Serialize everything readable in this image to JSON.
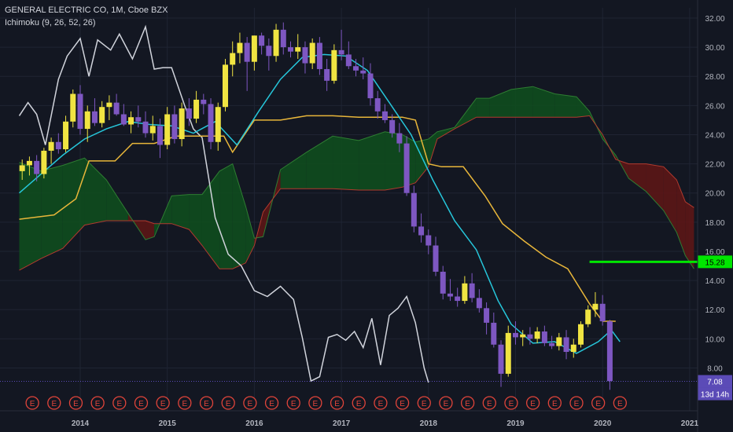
{
  "header": {
    "symbol_line": "GENERAL ELECTRIC CO, 1M, Cboe BZX",
    "indicator_line": "Ichimoku (9, 26, 52, 26)"
  },
  "colors": {
    "background": "#131722",
    "grid": "#1f2433",
    "axis_text": "#b2b5be",
    "candle_up": "#f0e442",
    "candle_down": "#7e57c2",
    "conversion_line": "#26c6da",
    "base_line": "#e8b63a",
    "lagging_span": "#d1d4dc",
    "cloud_bull_fill": "#0f4c1e",
    "cloud_bear_fill": "#5c1616",
    "span_a": "#2e7d32",
    "span_b": "#b23a2e",
    "price_marker": "#00e600",
    "last_price_box": "#5b4bb7"
  },
  "chart_data": {
    "type": "candlestick",
    "title": "GENERAL ELECTRIC CO, 1M, Cboe BZX",
    "indicator": "Ichimoku (9, 26, 52, 26)",
    "x_range": [
      2013.3,
      2021.1
    ],
    "ylim": [
      6.3,
      33.0
    ],
    "x_ticks": [
      {
        "label": "2014",
        "value": 2014
      },
      {
        "label": "2015",
        "value": 2015
      },
      {
        "label": "2016",
        "value": 2016
      },
      {
        "label": "2017",
        "value": 2017
      },
      {
        "label": "2018",
        "value": 2018
      },
      {
        "label": "2019",
        "value": 2019
      },
      {
        "label": "2020",
        "value": 2020
      },
      {
        "label": "2021",
        "value": 2021
      }
    ],
    "y_ticks": [
      "8.00",
      "10.00",
      "12.00",
      "14.00",
      "16.00",
      "18.00",
      "20.00",
      "22.00",
      "24.00",
      "26.00",
      "28.00",
      "30.00",
      "32.00"
    ],
    "y_tick_values": [
      8,
      10,
      12,
      14,
      16,
      18,
      20,
      22,
      24,
      26,
      28,
      30,
      32
    ],
    "candles": {
      "start": 2013.3333,
      "step": 0.08333,
      "ohlc": [
        [
          21.5,
          22.3,
          20.9,
          21.9
        ],
        [
          21.9,
          22.5,
          21.2,
          22.2
        ],
        [
          22.2,
          22.6,
          20.8,
          21.3
        ],
        [
          21.3,
          23.1,
          21.0,
          22.9
        ],
        [
          22.9,
          23.8,
          22.0,
          23.5
        ],
        [
          23.5,
          24.1,
          22.7,
          23.0
        ],
        [
          23.0,
          25.3,
          22.8,
          24.9
        ],
        [
          24.9,
          27.1,
          24.5,
          26.8
        ],
        [
          26.8,
          27.4,
          24.0,
          24.4
        ],
        [
          24.4,
          26.0,
          23.5,
          25.6
        ],
        [
          25.6,
          26.5,
          24.6,
          24.8
        ],
        [
          24.8,
          26.3,
          24.5,
          25.9
        ],
        [
          25.9,
          26.7,
          25.0,
          26.2
        ],
        [
          26.2,
          26.8,
          25.3,
          25.4
        ],
        [
          25.4,
          26.1,
          24.6,
          24.7
        ],
        [
          24.7,
          25.6,
          24.1,
          25.2
        ],
        [
          25.2,
          26.0,
          24.5,
          24.9
        ],
        [
          24.9,
          25.6,
          23.8,
          24.1
        ],
        [
          24.1,
          25.3,
          23.6,
          24.6
        ],
        [
          24.6,
          25.1,
          22.4,
          23.3
        ],
        [
          23.3,
          25.9,
          23.0,
          25.4
        ],
        [
          25.4,
          26.0,
          23.4,
          23.7
        ],
        [
          23.7,
          26.2,
          23.2,
          25.8
        ],
        [
          25.8,
          26.5,
          24.6,
          25.1
        ],
        [
          25.1,
          27.0,
          24.8,
          26.4
        ],
        [
          26.4,
          26.8,
          25.4,
          26.1
        ],
        [
          26.1,
          26.5,
          23.0,
          23.5
        ],
        [
          23.5,
          26.2,
          22.9,
          25.9
        ],
        [
          25.9,
          29.2,
          25.6,
          28.8
        ],
        [
          28.8,
          30.4,
          28.0,
          29.6
        ],
        [
          29.6,
          31.0,
          28.9,
          30.3
        ],
        [
          30.3,
          30.7,
          27.0,
          29.0
        ],
        [
          29.0,
          30.8,
          28.4,
          30.8
        ],
        [
          30.8,
          31.0,
          29.5,
          30.1
        ],
        [
          30.1,
          30.6,
          28.4,
          29.4
        ],
        [
          29.4,
          31.6,
          29.0,
          31.2
        ],
        [
          31.2,
          31.7,
          29.5,
          30.0
        ],
        [
          30.0,
          30.4,
          29.3,
          29.7
        ],
        [
          29.7,
          30.9,
          29.2,
          30.0
        ],
        [
          30.0,
          30.4,
          28.2,
          28.9
        ],
        [
          28.9,
          30.6,
          28.5,
          30.3
        ],
        [
          30.3,
          30.7,
          28.1,
          28.5
        ],
        [
          28.5,
          29.2,
          27.0,
          27.7
        ],
        [
          27.7,
          30.2,
          27.5,
          29.8
        ],
        [
          29.8,
          31.2,
          29.1,
          29.5
        ],
        [
          29.5,
          30.4,
          28.5,
          28.7
        ],
        [
          28.7,
          29.2,
          28.0,
          28.4
        ],
        [
          28.4,
          29.3,
          27.8,
          28.2
        ],
        [
          28.2,
          28.9,
          26.0,
          26.5
        ],
        [
          26.5,
          27.0,
          25.1,
          25.6
        ],
        [
          25.6,
          26.1,
          24.8,
          25.0
        ],
        [
          25.0,
          25.4,
          23.8,
          24.1
        ],
        [
          24.1,
          24.8,
          22.8,
          23.4
        ],
        [
          23.4,
          23.9,
          19.8,
          20.0
        ],
        [
          20.0,
          20.5,
          17.3,
          17.7
        ],
        [
          17.7,
          18.6,
          16.6,
          17.1
        ],
        [
          17.1,
          17.5,
          15.8,
          16.4
        ],
        [
          16.4,
          17.0,
          14.3,
          14.6
        ],
        [
          14.6,
          15.0,
          12.7,
          13.1
        ],
        [
          13.1,
          14.1,
          12.6,
          12.9
        ],
        [
          12.9,
          13.5,
          12.2,
          12.6
        ],
        [
          12.6,
          14.3,
          12.4,
          13.8
        ],
        [
          13.8,
          14.5,
          12.5,
          12.8
        ],
        [
          12.8,
          13.4,
          11.8,
          12.1
        ],
        [
          12.1,
          12.5,
          10.3,
          11.1
        ],
        [
          11.1,
          11.8,
          9.4,
          9.6
        ],
        [
          9.6,
          9.9,
          6.7,
          7.6
        ],
        [
          7.6,
          10.9,
          7.4,
          10.4
        ],
        [
          10.4,
          11.2,
          9.6,
          10.1
        ],
        [
          10.1,
          10.6,
          9.5,
          10.3
        ],
        [
          10.3,
          10.8,
          9.6,
          10.0
        ],
        [
          10.0,
          10.8,
          9.7,
          10.5
        ],
        [
          10.5,
          10.9,
          9.5,
          9.7
        ],
        [
          9.7,
          10.2,
          9.3,
          9.5
        ],
        [
          9.5,
          10.4,
          9.2,
          10.1
        ],
        [
          10.1,
          10.6,
          8.6,
          9.1
        ],
        [
          9.1,
          10.0,
          8.7,
          9.6
        ],
        [
          9.6,
          11.2,
          9.4,
          11.0
        ],
        [
          11.0,
          12.3,
          10.8,
          12.0
        ],
        [
          12.0,
          13.2,
          11.5,
          12.4
        ],
        [
          12.4,
          13.0,
          10.9,
          11.2
        ],
        [
          11.2,
          11.3,
          6.5,
          7.1
        ]
      ]
    },
    "conversion_line": {
      "name": "Conversion Line",
      "x": [
        2013.3,
        2013.55,
        2013.8,
        2014.05,
        2014.3,
        2014.55,
        2014.8,
        2015.05,
        2015.3,
        2015.55,
        2015.8,
        2016.05,
        2016.3,
        2016.55,
        2016.8,
        2017.05,
        2017.3,
        2017.55,
        2017.8,
        2018.05,
        2018.3,
        2018.55,
        2018.8,
        2018.95,
        2019.2,
        2019.45,
        2019.7,
        2019.95,
        2020.1,
        2020.2
      ],
      "y": [
        20.0,
        21.3,
        22.6,
        23.7,
        24.4,
        24.9,
        24.7,
        24.6,
        24.1,
        24.9,
        23.3,
        25.6,
        27.8,
        29.3,
        29.5,
        29.4,
        28.4,
        26.2,
        24.0,
        20.9,
        18.1,
        16.1,
        12.6,
        11.0,
        9.7,
        9.8,
        9.0,
        9.8,
        10.6,
        9.8
      ]
    },
    "base_line": {
      "name": "Base Line",
      "x": [
        2013.3,
        2013.7,
        2013.95,
        2014.1,
        2014.4,
        2014.6,
        2014.85,
        2015.1,
        2015.4,
        2015.65,
        2015.75,
        2016.0,
        2016.3,
        2016.6,
        2016.9,
        2017.2,
        2017.5,
        2017.7,
        2017.85,
        2018.0,
        2018.15,
        2018.4,
        2018.65,
        2018.85,
        2019.1,
        2019.35,
        2019.6,
        2019.85,
        2020.0,
        2020.15
      ],
      "y": [
        18.2,
        18.5,
        19.6,
        22.2,
        22.2,
        23.4,
        23.4,
        23.9,
        23.9,
        23.9,
        22.8,
        25.0,
        25.0,
        25.3,
        25.3,
        25.2,
        25.2,
        25.2,
        25.0,
        22.0,
        21.8,
        21.8,
        19.8,
        17.9,
        16.7,
        15.6,
        14.8,
        12.4,
        11.2,
        11.2
      ]
    },
    "lagging_span": {
      "name": "Lagging Span",
      "x": [
        2013.3,
        2013.4,
        2013.5,
        2013.6,
        2013.75,
        2013.85,
        2014.0,
        2014.1,
        2014.2,
        2014.35,
        2014.45,
        2014.6,
        2014.75,
        2014.85,
        2014.95,
        2015.05,
        2015.2,
        2015.3,
        2015.4,
        2015.55,
        2015.7,
        2015.85,
        2016.0,
        2016.15,
        2016.3,
        2016.45,
        2016.55,
        2016.65,
        2016.75,
        2016.85,
        2016.95,
        2017.05,
        2017.15,
        2017.25,
        2017.35,
        2017.45,
        2017.55,
        2017.65,
        2017.75,
        2017.85,
        2017.95,
        2018.0
      ],
      "y": [
        25.3,
        26.2,
        25.4,
        23.3,
        27.8,
        29.4,
        30.6,
        28.0,
        30.5,
        29.8,
        30.9,
        29.2,
        31.4,
        28.5,
        28.6,
        28.6,
        26.0,
        24.4,
        23.8,
        18.3,
        15.8,
        15.0,
        13.3,
        12.9,
        13.6,
        12.7,
        10.1,
        7.1,
        7.4,
        10.1,
        10.3,
        9.9,
        10.5,
        9.4,
        11.4,
        8.2,
        11.6,
        12.1,
        12.9,
        11.1,
        8.0,
        7.0
      ]
    },
    "cloud": {
      "x": [
        2013.3,
        2013.55,
        2013.8,
        2014.05,
        2014.3,
        2014.55,
        2014.75,
        2014.85,
        2015.05,
        2015.25,
        2015.4,
        2015.6,
        2015.75,
        2015.9,
        2016.0,
        2016.1,
        2016.3,
        2016.6,
        2016.9,
        2017.2,
        2017.5,
        2017.7,
        2017.85,
        2018.0,
        2018.1,
        2018.3,
        2018.55,
        2018.7,
        2018.95,
        2019.2,
        2019.45,
        2019.7,
        2019.85,
        2020.0,
        2020.15,
        2020.3,
        2020.5,
        2020.7,
        2020.85,
        2020.95,
        2021.05
      ],
      "span_a": [
        22.1,
        21.5,
        21.9,
        22.4,
        20.9,
        18.6,
        16.8,
        17.0,
        19.8,
        19.9,
        19.9,
        21.5,
        22.0,
        19.1,
        16.9,
        17.0,
        21.6,
        22.8,
        23.9,
        23.6,
        24.2,
        24.0,
        23.5,
        23.7,
        24.2,
        24.5,
        26.5,
        26.5,
        27.1,
        27.3,
        26.8,
        26.6,
        25.6,
        23.7,
        22.6,
        21.0,
        20.1,
        18.8,
        17.3,
        15.7,
        14.8
      ],
      "span_b": [
        14.7,
        15.5,
        16.2,
        17.8,
        18.1,
        18.1,
        18.1,
        17.9,
        17.9,
        17.5,
        16.4,
        14.8,
        14.8,
        15.2,
        16.4,
        18.7,
        20.3,
        20.3,
        20.3,
        20.2,
        20.2,
        20.4,
        20.7,
        21.8,
        23.7,
        24.4,
        25.2,
        25.2,
        25.2,
        25.2,
        25.2,
        25.2,
        25.3,
        24.0,
        22.3,
        22.0,
        22.0,
        21.8,
        20.9,
        19.4,
        19.0
      ]
    },
    "price_marker": {
      "value": 15.28,
      "label": "15.28",
      "x_start": 2019.85
    },
    "last_price": {
      "value": 7.08,
      "label": "7.08",
      "countdown": "13d 14h"
    },
    "earnings_markers": {
      "label": "E",
      "count": 28,
      "start": 2013.45,
      "step": 0.25
    }
  }
}
